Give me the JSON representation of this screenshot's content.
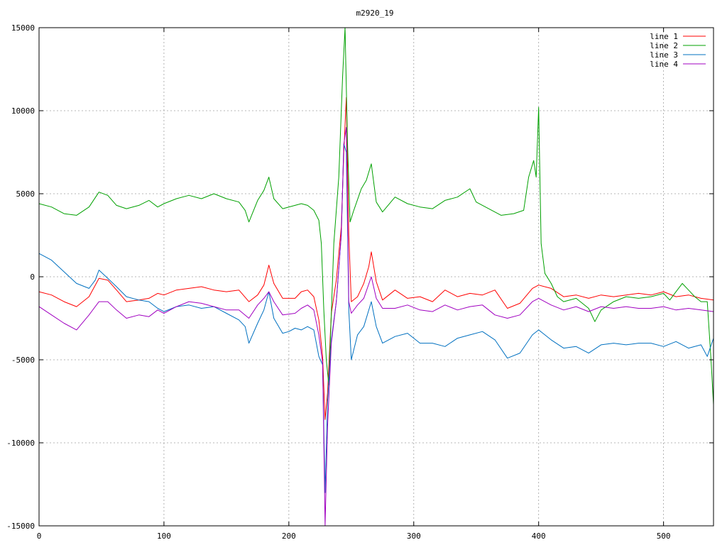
{
  "chart_data": {
    "type": "line",
    "title": "m2920_19",
    "xlim": [
      0,
      540
    ],
    "ylim": [
      -15000,
      15000
    ],
    "x_ticks": [
      0,
      100,
      200,
      300,
      400,
      500
    ],
    "y_ticks": [
      -15000,
      -10000,
      -5000,
      0,
      5000,
      10000,
      15000
    ],
    "grid": true,
    "legend_position": "top-right",
    "series": [
      {
        "name": "line 1",
        "color": "#ff0000",
        "points": [
          [
            0,
            -900
          ],
          [
            10,
            -1100
          ],
          [
            20,
            -1500
          ],
          [
            30,
            -1800
          ],
          [
            40,
            -1200
          ],
          [
            48,
            -100
          ],
          [
            55,
            -200
          ],
          [
            62,
            -800
          ],
          [
            70,
            -1500
          ],
          [
            80,
            -1400
          ],
          [
            88,
            -1300
          ],
          [
            95,
            -1000
          ],
          [
            100,
            -1100
          ],
          [
            110,
            -800
          ],
          [
            120,
            -700
          ],
          [
            130,
            -600
          ],
          [
            140,
            -800
          ],
          [
            150,
            -900
          ],
          [
            160,
            -800
          ],
          [
            168,
            -1500
          ],
          [
            175,
            -1100
          ],
          [
            180,
            -500
          ],
          [
            184,
            700
          ],
          [
            188,
            -400
          ],
          [
            195,
            -1300
          ],
          [
            205,
            -1300
          ],
          [
            210,
            -900
          ],
          [
            215,
            -800
          ],
          [
            220,
            -1200
          ],
          [
            224,
            -2600
          ],
          [
            227,
            -4800
          ],
          [
            229,
            -8600
          ],
          [
            231,
            -7000
          ],
          [
            234,
            -2200
          ],
          [
            238,
            -200
          ],
          [
            242,
            3000
          ],
          [
            244,
            7500
          ],
          [
            246,
            10800
          ],
          [
            248,
            2500
          ],
          [
            250,
            -1500
          ],
          [
            255,
            -1200
          ],
          [
            260,
            -400
          ],
          [
            264,
            600
          ],
          [
            266,
            1500
          ],
          [
            270,
            -300
          ],
          [
            275,
            -1400
          ],
          [
            285,
            -800
          ],
          [
            295,
            -1300
          ],
          [
            305,
            -1200
          ],
          [
            315,
            -1500
          ],
          [
            325,
            -800
          ],
          [
            335,
            -1200
          ],
          [
            345,
            -1000
          ],
          [
            355,
            -1100
          ],
          [
            365,
            -800
          ],
          [
            375,
            -1900
          ],
          [
            385,
            -1600
          ],
          [
            395,
            -700
          ],
          [
            400,
            -500
          ],
          [
            410,
            -700
          ],
          [
            420,
            -1200
          ],
          [
            430,
            -1100
          ],
          [
            440,
            -1300
          ],
          [
            450,
            -1100
          ],
          [
            460,
            -1200
          ],
          [
            470,
            -1100
          ],
          [
            480,
            -1000
          ],
          [
            490,
            -1100
          ],
          [
            500,
            -900
          ],
          [
            510,
            -1200
          ],
          [
            520,
            -1100
          ],
          [
            530,
            -1300
          ],
          [
            540,
            -1400
          ]
        ]
      },
      {
        "name": "line 2",
        "color": "#00a000",
        "points": [
          [
            0,
            4400
          ],
          [
            10,
            4200
          ],
          [
            20,
            3800
          ],
          [
            30,
            3700
          ],
          [
            40,
            4200
          ],
          [
            48,
            5100
          ],
          [
            55,
            4900
          ],
          [
            62,
            4300
          ],
          [
            70,
            4100
          ],
          [
            80,
            4300
          ],
          [
            88,
            4600
          ],
          [
            95,
            4200
          ],
          [
            100,
            4400
          ],
          [
            110,
            4700
          ],
          [
            120,
            4900
          ],
          [
            130,
            4700
          ],
          [
            140,
            5000
          ],
          [
            150,
            4700
          ],
          [
            160,
            4500
          ],
          [
            165,
            4000
          ],
          [
            168,
            3300
          ],
          [
            175,
            4600
          ],
          [
            180,
            5200
          ],
          [
            184,
            6000
          ],
          [
            188,
            4700
          ],
          [
            195,
            4100
          ],
          [
            205,
            4300
          ],
          [
            210,
            4400
          ],
          [
            215,
            4300
          ],
          [
            220,
            4000
          ],
          [
            224,
            3400
          ],
          [
            226,
            2000
          ],
          [
            228,
            -2000
          ],
          [
            230,
            -5000
          ],
          [
            232,
            -6500
          ],
          [
            236,
            2000
          ],
          [
            240,
            6000
          ],
          [
            243,
            12000
          ],
          [
            245,
            15000
          ],
          [
            247,
            8000
          ],
          [
            249,
            3300
          ],
          [
            252,
            4000
          ],
          [
            258,
            5300
          ],
          [
            262,
            5800
          ],
          [
            266,
            6800
          ],
          [
            270,
            4500
          ],
          [
            275,
            3900
          ],
          [
            285,
            4800
          ],
          [
            295,
            4400
          ],
          [
            305,
            4200
          ],
          [
            315,
            4100
          ],
          [
            325,
            4600
          ],
          [
            335,
            4800
          ],
          [
            345,
            5300
          ],
          [
            350,
            4500
          ],
          [
            360,
            4100
          ],
          [
            370,
            3700
          ],
          [
            380,
            3800
          ],
          [
            388,
            4000
          ],
          [
            392,
            6000
          ],
          [
            396,
            7000
          ],
          [
            398,
            6000
          ],
          [
            400,
            10200
          ],
          [
            402,
            2000
          ],
          [
            405,
            200
          ],
          [
            410,
            -400
          ],
          [
            415,
            -1200
          ],
          [
            420,
            -1500
          ],
          [
            430,
            -1300
          ],
          [
            440,
            -1900
          ],
          [
            445,
            -2700
          ],
          [
            450,
            -2000
          ],
          [
            460,
            -1500
          ],
          [
            470,
            -1200
          ],
          [
            480,
            -1300
          ],
          [
            490,
            -1200
          ],
          [
            500,
            -1000
          ],
          [
            505,
            -1400
          ],
          [
            510,
            -900
          ],
          [
            515,
            -400
          ],
          [
            520,
            -800
          ],
          [
            525,
            -1200
          ],
          [
            530,
            -1500
          ],
          [
            535,
            -1500
          ],
          [
            538,
            -5000
          ],
          [
            540,
            -7700
          ]
        ]
      },
      {
        "name": "line 3",
        "color": "#0070c0",
        "points": [
          [
            0,
            1400
          ],
          [
            10,
            1000
          ],
          [
            20,
            300
          ],
          [
            30,
            -400
          ],
          [
            40,
            -700
          ],
          [
            45,
            -200
          ],
          [
            48,
            400
          ],
          [
            55,
            -100
          ],
          [
            62,
            -600
          ],
          [
            70,
            -1200
          ],
          [
            80,
            -1400
          ],
          [
            88,
            -1500
          ],
          [
            95,
            -1900
          ],
          [
            100,
            -2100
          ],
          [
            110,
            -1800
          ],
          [
            120,
            -1700
          ],
          [
            130,
            -1900
          ],
          [
            140,
            -1800
          ],
          [
            150,
            -2200
          ],
          [
            160,
            -2600
          ],
          [
            165,
            -3000
          ],
          [
            168,
            -4000
          ],
          [
            175,
            -2800
          ],
          [
            180,
            -2000
          ],
          [
            184,
            -900
          ],
          [
            188,
            -2500
          ],
          [
            195,
            -3400
          ],
          [
            200,
            -3300
          ],
          [
            205,
            -3100
          ],
          [
            210,
            -3200
          ],
          [
            215,
            -3000
          ],
          [
            220,
            -3200
          ],
          [
            224,
            -4800
          ],
          [
            227,
            -5300
          ],
          [
            229,
            -13000
          ],
          [
            231,
            -7500
          ],
          [
            234,
            -3800
          ],
          [
            238,
            -1500
          ],
          [
            242,
            2500
          ],
          [
            244,
            8000
          ],
          [
            246,
            7500
          ],
          [
            248,
            -2000
          ],
          [
            250,
            -5000
          ],
          [
            255,
            -3500
          ],
          [
            260,
            -3000
          ],
          [
            266,
            -1500
          ],
          [
            270,
            -3000
          ],
          [
            275,
            -4000
          ],
          [
            285,
            -3600
          ],
          [
            295,
            -3400
          ],
          [
            305,
            -4000
          ],
          [
            315,
            -4000
          ],
          [
            325,
            -4200
          ],
          [
            335,
            -3700
          ],
          [
            345,
            -3500
          ],
          [
            355,
            -3300
          ],
          [
            365,
            -3800
          ],
          [
            375,
            -4900
          ],
          [
            385,
            -4600
          ],
          [
            395,
            -3500
          ],
          [
            400,
            -3200
          ],
          [
            410,
            -3800
          ],
          [
            420,
            -4300
          ],
          [
            430,
            -4200
          ],
          [
            440,
            -4600
          ],
          [
            450,
            -4100
          ],
          [
            460,
            -4000
          ],
          [
            470,
            -4100
          ],
          [
            480,
            -4000
          ],
          [
            490,
            -4000
          ],
          [
            500,
            -4200
          ],
          [
            510,
            -3900
          ],
          [
            520,
            -4300
          ],
          [
            530,
            -4100
          ],
          [
            535,
            -4800
          ],
          [
            540,
            -3700
          ]
        ]
      },
      {
        "name": "line 4",
        "color": "#a000c0",
        "points": [
          [
            0,
            -1800
          ],
          [
            10,
            -2300
          ],
          [
            20,
            -2800
          ],
          [
            30,
            -3200
          ],
          [
            40,
            -2300
          ],
          [
            48,
            -1500
          ],
          [
            55,
            -1500
          ],
          [
            62,
            -2000
          ],
          [
            70,
            -2500
          ],
          [
            80,
            -2300
          ],
          [
            88,
            -2400
          ],
          [
            95,
            -2000
          ],
          [
            100,
            -2200
          ],
          [
            110,
            -1800
          ],
          [
            120,
            -1500
          ],
          [
            130,
            -1600
          ],
          [
            140,
            -1800
          ],
          [
            150,
            -2000
          ],
          [
            160,
            -2000
          ],
          [
            168,
            -2500
          ],
          [
            175,
            -1700
          ],
          [
            180,
            -1300
          ],
          [
            184,
            -900
          ],
          [
            188,
            -1500
          ],
          [
            195,
            -2300
          ],
          [
            205,
            -2200
          ],
          [
            210,
            -1900
          ],
          [
            215,
            -1700
          ],
          [
            220,
            -2000
          ],
          [
            224,
            -3500
          ],
          [
            227,
            -5200
          ],
          [
            229,
            -15000
          ],
          [
            231,
            -9000
          ],
          [
            234,
            -4000
          ],
          [
            238,
            -1500
          ],
          [
            242,
            2500
          ],
          [
            244,
            8000
          ],
          [
            246,
            9000
          ],
          [
            248,
            -1500
          ],
          [
            250,
            -2200
          ],
          [
            255,
            -1700
          ],
          [
            260,
            -1300
          ],
          [
            266,
            0
          ],
          [
            270,
            -1300
          ],
          [
            275,
            -1900
          ],
          [
            285,
            -1900
          ],
          [
            295,
            -1700
          ],
          [
            305,
            -2000
          ],
          [
            315,
            -2100
          ],
          [
            325,
            -1700
          ],
          [
            335,
            -2000
          ],
          [
            345,
            -1800
          ],
          [
            355,
            -1700
          ],
          [
            365,
            -2300
          ],
          [
            375,
            -2500
          ],
          [
            385,
            -2300
          ],
          [
            395,
            -1500
          ],
          [
            400,
            -1300
          ],
          [
            410,
            -1700
          ],
          [
            420,
            -2000
          ],
          [
            430,
            -1800
          ],
          [
            440,
            -2100
          ],
          [
            450,
            -1800
          ],
          [
            460,
            -1900
          ],
          [
            470,
            -1800
          ],
          [
            480,
            -1900
          ],
          [
            490,
            -1900
          ],
          [
            500,
            -1800
          ],
          [
            510,
            -2000
          ],
          [
            520,
            -1900
          ],
          [
            530,
            -2000
          ],
          [
            540,
            -2100
          ]
        ]
      }
    ]
  }
}
